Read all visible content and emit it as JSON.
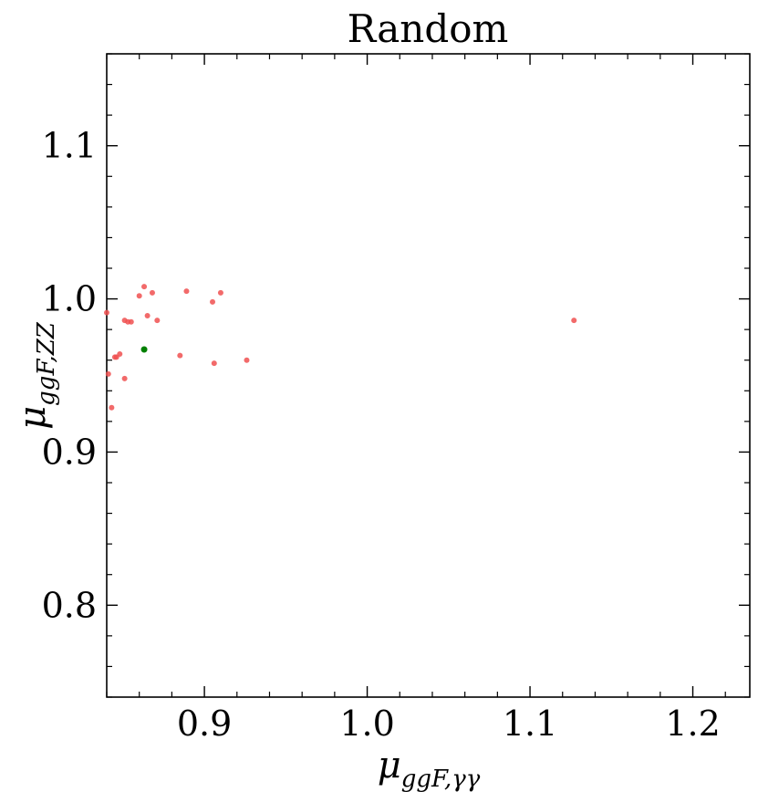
{
  "chart_data": {
    "type": "scatter",
    "title": "Random",
    "xlabel": {
      "main": "μ",
      "sub": "ggF,γγ"
    },
    "ylabel": {
      "main": "μ",
      "sub": "ggF,ZZ"
    },
    "xlim": [
      0.84,
      1.235
    ],
    "ylim": [
      0.74,
      1.16
    ],
    "x_ticks": [
      0.9,
      1.0,
      1.1,
      1.2
    ],
    "x_tick_labels": [
      "0.9",
      "1.0",
      "1.1",
      "1.2"
    ],
    "y_ticks": [
      0.8,
      0.9,
      1.0,
      1.1
    ],
    "y_tick_labels": [
      "0.8",
      "0.9",
      "1.0",
      "1.1"
    ],
    "x_minor_step": 0.02,
    "y_minor_step": 0.02,
    "grid": false,
    "series": [
      {
        "color": "#f05050",
        "points": [
          [
            0.84,
            0.991
          ],
          [
            0.841,
            0.951
          ],
          [
            0.843,
            0.929
          ],
          [
            0.845,
            0.962
          ],
          [
            0.846,
            0.962
          ],
          [
            0.848,
            0.964
          ],
          [
            0.851,
            0.986
          ],
          [
            0.851,
            0.948
          ],
          [
            0.853,
            0.985
          ],
          [
            0.855,
            0.985
          ],
          [
            0.86,
            1.002
          ],
          [
            0.863,
            1.008
          ],
          [
            0.865,
            0.989
          ],
          [
            0.868,
            1.004
          ],
          [
            0.871,
            0.986
          ],
          [
            0.885,
            0.963
          ],
          [
            0.889,
            1.005
          ],
          [
            0.905,
            0.998
          ],
          [
            0.906,
            0.958
          ],
          [
            0.91,
            1.004
          ],
          [
            0.926,
            0.96
          ],
          [
            1.127,
            0.986
          ]
        ]
      },
      {
        "color": "#008000",
        "points": [
          [
            0.863,
            0.967
          ]
        ]
      }
    ]
  }
}
